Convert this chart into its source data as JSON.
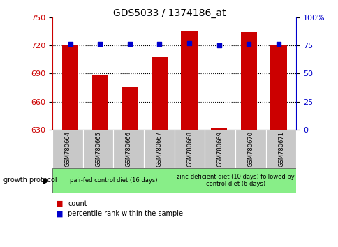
{
  "title": "GDS5033 / 1374186_at",
  "categories": [
    "GSM780664",
    "GSM780665",
    "GSM780666",
    "GSM780667",
    "GSM780668",
    "GSM780669",
    "GSM780670",
    "GSM780671"
  ],
  "bar_values": [
    721,
    689,
    675,
    708,
    735,
    632,
    734,
    720
  ],
  "percentile_values": [
    76,
    76,
    76,
    76,
    77,
    75,
    76,
    76
  ],
  "ylim_left": [
    630,
    750
  ],
  "ylim_right": [
    0,
    100
  ],
  "yticks_left": [
    630,
    660,
    690,
    720,
    750
  ],
  "yticks_right": [
    0,
    25,
    50,
    75,
    100
  ],
  "bar_color": "#cc0000",
  "dot_color": "#0000cc",
  "bar_bottom": 630,
  "groups": [
    {
      "label": "pair-fed control diet (16 days)",
      "samples": [
        0,
        1,
        2,
        3
      ],
      "color": "#88ee88"
    },
    {
      "label": "zinc-deficient diet (10 days) followed by\ncontrol diet (6 days)",
      "samples": [
        4,
        5,
        6,
        7
      ],
      "color": "#88ee88"
    }
  ],
  "group_protocol_label": "growth protocol",
  "legend_count_label": "count",
  "legend_pct_label": "percentile rank within the sample",
  "tick_label_bg": "#c8c8c8"
}
